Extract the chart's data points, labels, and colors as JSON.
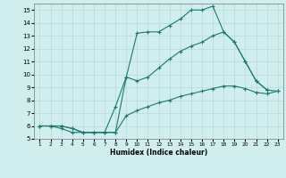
{
  "series1_x": [
    1,
    2,
    3,
    4,
    5,
    6,
    7,
    8,
    9,
    10,
    11,
    12,
    13,
    14,
    15,
    16,
    17,
    18,
    19,
    20,
    21,
    22
  ],
  "series1_y": [
    6.0,
    6.0,
    6.0,
    5.8,
    5.5,
    5.5,
    5.5,
    5.5,
    9.8,
    13.2,
    13.3,
    13.3,
    13.8,
    14.3,
    15.0,
    15.0,
    15.3,
    13.3,
    12.5,
    11.0,
    9.5,
    8.8
  ],
  "series2_x": [
    1,
    2,
    3,
    4,
    5,
    6,
    7,
    8,
    9,
    10,
    11,
    12,
    13,
    14,
    15,
    16,
    17,
    18,
    19,
    20,
    21,
    22,
    23
  ],
  "series2_y": [
    6.0,
    6.0,
    6.0,
    5.8,
    5.5,
    5.5,
    5.5,
    7.5,
    9.8,
    9.5,
    9.8,
    10.5,
    11.2,
    11.8,
    12.2,
    12.5,
    13.0,
    13.3,
    12.5,
    11.0,
    9.5,
    8.8,
    8.7
  ],
  "series3_x": [
    1,
    2,
    3,
    4,
    5,
    6,
    7,
    8,
    9,
    10,
    11,
    12,
    13,
    14,
    15,
    16,
    17,
    18,
    19,
    20,
    21,
    22,
    23
  ],
  "series3_y": [
    6.0,
    6.0,
    5.8,
    5.5,
    5.5,
    5.5,
    5.5,
    5.5,
    6.8,
    7.2,
    7.5,
    7.8,
    8.0,
    8.3,
    8.5,
    8.7,
    8.9,
    9.1,
    9.1,
    8.9,
    8.6,
    8.5,
    8.7
  ],
  "line_color": "#1a7a6e",
  "background_color": "#d0eeee",
  "grid_color": "#b8d8d8",
  "xlabel": "Humidex (Indice chaleur)",
  "ylim": [
    5,
    15.5
  ],
  "xlim": [
    0.5,
    23.5
  ],
  "yticks": [
    5,
    6,
    7,
    8,
    9,
    10,
    11,
    12,
    13,
    14,
    15
  ],
  "xticks": [
    1,
    2,
    3,
    4,
    5,
    6,
    7,
    8,
    9,
    10,
    11,
    12,
    13,
    14,
    15,
    16,
    17,
    18,
    19,
    20,
    21,
    22,
    23
  ]
}
